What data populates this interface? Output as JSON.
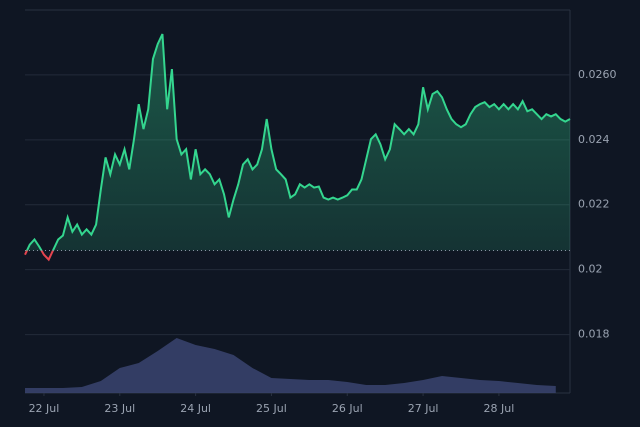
{
  "chart_data": {
    "type": "line",
    "x": [
      -6,
      -4.5,
      -3,
      -1.5,
      0,
      1.5,
      3,
      4.5,
      6,
      7.5,
      9,
      10.5,
      12,
      13.5,
      15,
      16.5,
      18,
      19.5,
      21,
      22.5,
      24,
      25.5,
      27,
      28.5,
      30,
      31.5,
      33,
      34.5,
      36,
      37.5,
      39,
      40.5,
      42,
      43.5,
      45,
      46.5,
      48,
      49.5,
      51,
      52.5,
      54,
      55.5,
      57,
      58.5,
      60,
      61.5,
      63,
      64.5,
      66,
      67.5,
      69,
      70.5,
      72,
      73.5,
      75,
      76.5,
      78,
      79.5,
      81,
      82.5,
      84,
      85.5,
      87,
      88.5,
      90,
      91.5,
      93,
      94.5,
      96,
      97.5,
      99,
      100.5,
      102,
      103.5,
      105,
      106.5,
      108,
      109.5,
      111,
      112.5,
      114,
      115.5,
      117,
      118.5,
      120,
      121.5,
      123,
      124.5,
      126,
      127.5,
      129,
      130.5,
      132,
      133.5,
      135,
      136.5,
      138,
      139.5,
      141,
      142.5,
      144,
      145.5,
      147,
      148.5,
      150,
      151.5,
      153,
      154.5,
      156,
      157.5,
      159,
      160.5,
      162,
      163.5,
      165,
      166.5
    ],
    "series": [
      {
        "color": "#34d68f",
        "down_color": "#e5444f",
        "values": [
          0.02046,
          0.02077,
          0.02093,
          0.02071,
          0.02046,
          0.02031,
          0.02062,
          0.02093,
          0.02105,
          0.02161,
          0.02117,
          0.02139,
          0.02108,
          0.02124,
          0.02108,
          0.02139,
          0.02247,
          0.02346,
          0.02294,
          0.02355,
          0.02324,
          0.02371,
          0.02309,
          0.02402,
          0.0251,
          0.02433,
          0.02494,
          0.02649,
          0.02695,
          0.02726,
          0.02494,
          0.02618,
          0.02402,
          0.02355,
          0.02371,
          0.02278,
          0.02371,
          0.02294,
          0.02309,
          0.02294,
          0.02263,
          0.02278,
          0.02232,
          0.02161,
          0.02216,
          0.02263,
          0.02324,
          0.0234,
          0.02309,
          0.02324,
          0.02371,
          0.02464,
          0.02371,
          0.02309,
          0.02294,
          0.02278,
          0.02222,
          0.02232,
          0.02263,
          0.02253,
          0.02263,
          0.02253,
          0.02256,
          0.02222,
          0.02216,
          0.02222,
          0.02216,
          0.02222,
          0.02229,
          0.02247,
          0.02247,
          0.02278,
          0.0234,
          0.02402,
          0.02417,
          0.02386,
          0.0234,
          0.02371,
          0.02448,
          0.02433,
          0.02417,
          0.02433,
          0.02417,
          0.02448,
          0.02562,
          0.02494,
          0.02541,
          0.0255,
          0.02531,
          0.02494,
          0.02464,
          0.02448,
          0.02439,
          0.02448,
          0.02479,
          0.02501,
          0.0251,
          0.02516,
          0.02501,
          0.0251,
          0.02494,
          0.0251,
          0.02494,
          0.0251,
          0.02494,
          0.02519,
          0.02488,
          0.02494,
          0.02479,
          0.02464,
          0.02479,
          0.02472,
          0.02479,
          0.02464,
          0.02456,
          0.02464
        ]
      }
    ],
    "baseline": 0.02059,
    "xlim": [
      -6,
      166.5
    ],
    "xticks": [
      {
        "value": 0,
        "label": "22 Jul"
      },
      {
        "value": 24,
        "label": "23 Jul"
      },
      {
        "value": 48,
        "label": "24 Jul"
      },
      {
        "value": 72,
        "label": "25 Jul"
      },
      {
        "value": 96,
        "label": "26 Jul"
      },
      {
        "value": 120,
        "label": "27 Jul"
      },
      {
        "value": 144,
        "label": "28 Jul"
      }
    ],
    "ylim": [
      0.0162,
      0.028
    ],
    "yticks": [
      0.018,
      0.02,
      0.022,
      0.024,
      {
        "value": 0.026,
        "label": "0.0260"
      }
    ],
    "grid": true,
    "volume": {
      "color": "#3a4470",
      "x": [
        -6,
        0,
        6,
        12,
        18,
        24,
        30,
        36,
        42,
        48,
        54,
        60,
        66,
        72,
        78,
        84,
        90,
        96,
        102,
        108,
        114,
        120,
        126,
        132,
        138,
        144,
        150,
        156,
        162
      ],
      "values": [
        5,
        5,
        5,
        6,
        12,
        25,
        30,
        42,
        55,
        48,
        44,
        38,
        25,
        15,
        14,
        13,
        13,
        11,
        8,
        8,
        10,
        13,
        17,
        15,
        13,
        12,
        10,
        8,
        7
      ],
      "ylim": [
        0,
        60
      ]
    }
  }
}
